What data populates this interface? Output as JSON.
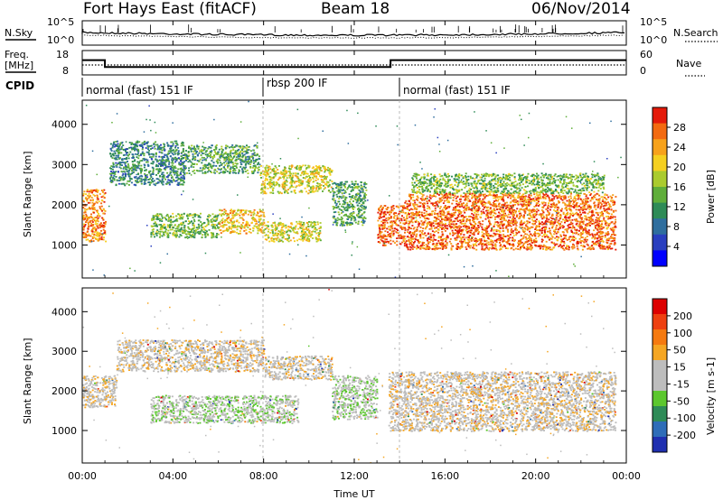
{
  "header": {
    "station": "Fort Hays East (fitACF)",
    "beam": "Beam 18",
    "date": "06/Nov/2014"
  },
  "noise_panel": {
    "left_label": "N.Sky",
    "right_label": "N.Search",
    "left_ticks": [
      "10^5",
      "10^0"
    ],
    "right_ticks": [
      "10^5",
      "10^0"
    ]
  },
  "freq_panel": {
    "left_label": "Freq.",
    "left_unit": "[MHz]",
    "right_label": "Nave",
    "left_ticks": [
      "18",
      "8"
    ],
    "right_ticks": [
      "60",
      "0"
    ]
  },
  "cpid_panel": {
    "label": "CPID",
    "segments": [
      {
        "start_hour": 0,
        "end_hour": 7.9,
        "text": "normal (fast) 151 IF"
      },
      {
        "start_hour": 7.9,
        "end_hour": 13.8,
        "text": "rbsp 200 IF"
      },
      {
        "start_hour": 13.8,
        "end_hour": 24,
        "text": "normal (fast) 151 IF"
      }
    ]
  },
  "power_panel": {
    "ylabel": "Slant Range [km]",
    "yticks": [
      "4000",
      "3000",
      "2000",
      "1000"
    ],
    "colorbar_label": "Power [dB]",
    "colorbar_ticks": [
      "28",
      "24",
      "20",
      "16",
      "12",
      "8",
      "4"
    ],
    "colors": [
      "#0000ff",
      "#2a3fbf",
      "#2f6e9e",
      "#2e8b57",
      "#5fae3a",
      "#aacb2e",
      "#f5d020",
      "#f7a21b",
      "#f36a10",
      "#e41a0a"
    ]
  },
  "velocity_panel": {
    "ylabel": "Slant Range [km]",
    "yticks": [
      "4000",
      "3000",
      "2000",
      "1000"
    ],
    "colorbar_label": "Velocity [m s-1]",
    "colorbar_ticks": [
      "200",
      "100",
      "50",
      "15",
      "-15",
      "-50",
      "-100",
      "-200"
    ],
    "colors": [
      "#1f2fb0",
      "#2e6db8",
      "#2e8b57",
      "#5cc72e",
      "#bdbdbd",
      "#bdbdbd",
      "#f5a623",
      "#f57a10",
      "#ee4010",
      "#dd0000"
    ]
  },
  "xaxis": {
    "label": "Time UT",
    "ticks": [
      "00:00",
      "04:00",
      "08:00",
      "12:00",
      "16:00",
      "20:00",
      "00:00"
    ]
  },
  "chart_data": {
    "type": "heatmap",
    "title": "Fort Hays East (fitACF)",
    "subtitle": "Beam 18",
    "date": "06/Nov/2014",
    "xlabel": "Time UT",
    "ylabel": "Slant Range [km]",
    "x_range_hours": [
      0,
      24
    ],
    "y_range_km": [
      180,
      4600
    ],
    "freq_mhz": [
      {
        "start_hour": 0,
        "end_hour": 1.0,
        "value": 14.5
      },
      {
        "start_hour": 1.0,
        "end_hour": 13.6,
        "value": 10.5
      },
      {
        "start_hour": 13.6,
        "end_hour": 24,
        "value": 14.5
      }
    ],
    "nave_approx": 20,
    "power_range_db": [
      0,
      30
    ],
    "velocity_range_ms": [
      -200,
      200
    ],
    "power_scatter_bands": [
      {
        "start_hour": 0.0,
        "end_hour": 1.0,
        "range_km": [
          1100,
          2400
        ],
        "power_db": 24
      },
      {
        "start_hour": 1.2,
        "end_hour": 4.5,
        "range_km": [
          2500,
          3600
        ],
        "power_db": 10
      },
      {
        "start_hour": 4.5,
        "end_hour": 7.8,
        "range_km": [
          2800,
          3500
        ],
        "power_db": 12
      },
      {
        "start_hour": 7.8,
        "end_hour": 11.0,
        "range_km": [
          2300,
          3000
        ],
        "power_db": 18
      },
      {
        "start_hour": 3.0,
        "end_hour": 6.0,
        "range_km": [
          1200,
          1800
        ],
        "power_db": 14
      },
      {
        "start_hour": 6.0,
        "end_hour": 8.0,
        "range_km": [
          1300,
          1900
        ],
        "power_db": 20
      },
      {
        "start_hour": 8.0,
        "end_hour": 10.5,
        "range_km": [
          1100,
          1600
        ],
        "power_db": 18
      },
      {
        "start_hour": 11.0,
        "end_hour": 12.5,
        "range_km": [
          1500,
          2600
        ],
        "power_db": 12
      },
      {
        "start_hour": 13.0,
        "end_hour": 14.2,
        "range_km": [
          1000,
          2000
        ],
        "power_db": 26
      },
      {
        "start_hour": 14.2,
        "end_hour": 23.5,
        "range_km": [
          900,
          2300
        ],
        "power_db": 25
      },
      {
        "start_hour": 14.5,
        "end_hour": 23.0,
        "range_km": [
          2300,
          2800
        ],
        "power_db": 14
      }
    ],
    "velocity_scatter_bands": [
      {
        "start_hour": 0.0,
        "end_hour": 1.5,
        "range_km": [
          1600,
          2400
        ],
        "velocity_ms": 0
      },
      {
        "start_hour": 1.5,
        "end_hour": 8.0,
        "range_km": [
          2500,
          3300
        ],
        "velocity_ms": 0
      },
      {
        "start_hour": 8.0,
        "end_hour": 11.0,
        "range_km": [
          2300,
          2900
        ],
        "velocity_ms": 0
      },
      {
        "start_hour": 3.0,
        "end_hour": 9.5,
        "range_km": [
          1200,
          1900
        ],
        "velocity_ms": 40
      },
      {
        "start_hour": 11.0,
        "end_hour": 13.0,
        "range_km": [
          1300,
          2400
        ],
        "velocity_ms": 40
      },
      {
        "start_hour": 13.5,
        "end_hour": 23.5,
        "range_km": [
          1000,
          2500
        ],
        "velocity_ms": 0
      }
    ]
  }
}
